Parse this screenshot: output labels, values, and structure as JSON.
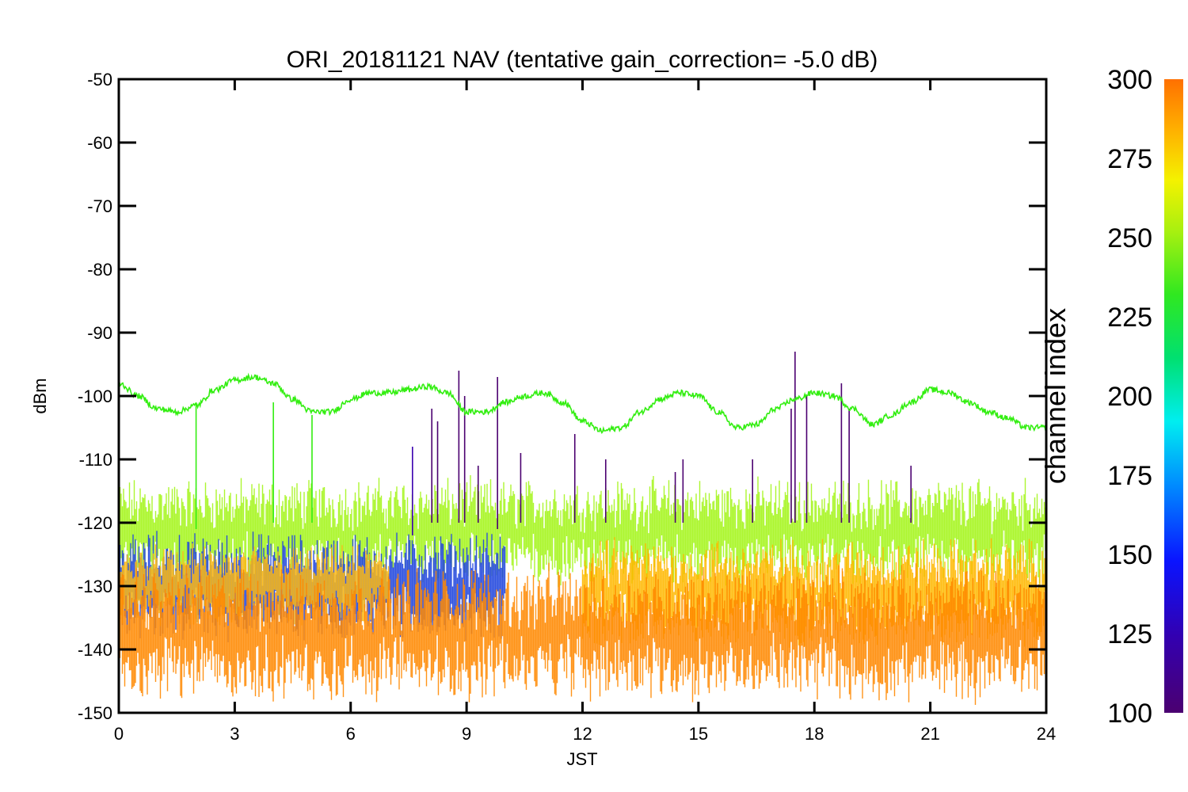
{
  "chart_data": {
    "type": "line",
    "title": "ORI_20181121 NAV (tentative gain_correction= -5.0 dB)",
    "xlabel": "JST",
    "ylabel": "dBm",
    "xlim": [
      0,
      24
    ],
    "ylim": [
      -150,
      -50
    ],
    "xticks": [
      "0",
      "3",
      "6",
      "9",
      "12",
      "15",
      "18",
      "21",
      "24"
    ],
    "yticks": [
      "-50",
      "-60",
      "-70",
      "-80",
      "-90",
      "-100",
      "-110",
      "-120",
      "-130",
      "-140",
      "-150"
    ],
    "grid": false,
    "colorbar": {
      "label": "channel index",
      "range": [
        100,
        300
      ],
      "ticks": [
        "300",
        "275",
        "250",
        "225",
        "200",
        "175",
        "150",
        "125",
        "100"
      ]
    },
    "series": [
      {
        "channel": 245,
        "color": "#33ee11",
        "x": [
          0,
          0.5,
          1,
          1.5,
          2,
          2.5,
          3,
          3.5,
          4,
          4.5,
          5,
          5.5,
          6,
          6.5,
          7,
          7.5,
          8,
          8.5,
          9,
          9.5,
          10,
          10.5,
          11,
          11.5,
          12,
          12.5,
          13,
          13.5,
          14,
          14.5,
          15,
          15.5,
          16,
          16.5,
          17,
          17.5,
          18,
          18.5,
          19,
          19.5,
          20,
          20.5,
          21,
          21.5,
          22,
          22.5,
          23,
          23.5,
          24
        ],
        "values": [
          -98,
          -100,
          -102,
          -102.5,
          -101.5,
          -99,
          -97.5,
          -97,
          -98,
          -100.5,
          -102.5,
          -102.5,
          -100.5,
          -99.5,
          -99.5,
          -99,
          -98.5,
          -99.5,
          -102.5,
          -102.5,
          -101,
          -100,
          -99.5,
          -101,
          -104,
          -105.5,
          -105,
          -102.5,
          -100.5,
          -99.5,
          -100,
          -102.5,
          -105,
          -104.5,
          -102,
          -100.5,
          -99.5,
          -100,
          -102,
          -104.5,
          -103,
          -101,
          -99,
          -99.5,
          -101,
          -102.5,
          -103.5,
          -105,
          -105
        ]
      }
    ],
    "bands": [
      {
        "label_channel": 240,
        "color": "#a4f51b",
        "center": -121.5,
        "spread": 4
      },
      {
        "label_channel": 160,
        "color": "#1f45dd",
        "center": -130,
        "spread": 4,
        "x_range": [
          0,
          10
        ]
      },
      {
        "label_channel": 275,
        "color": "#fbb812",
        "center": -130,
        "spread": 3,
        "x_range": [
          0,
          7
        ]
      },
      {
        "label_channel": 280,
        "color": "#ffb800",
        "center": -131,
        "spread": 4,
        "x_range": [
          12,
          24
        ]
      },
      {
        "label_channel": 290,
        "color": "#ff8800",
        "center": -137.5,
        "spread": 5
      }
    ],
    "spikes": [
      {
        "x": 2.0,
        "top": -101,
        "bottom": -121,
        "channel": 245
      },
      {
        "x": 4.0,
        "top": -101,
        "bottom": -120,
        "channel": 245
      },
      {
        "x": 5.0,
        "top": -103,
        "bottom": -120,
        "channel": 245
      },
      {
        "x": 7.6,
        "top": -108,
        "bottom": -122,
        "channel": 140
      },
      {
        "x": 8.1,
        "top": -102,
        "bottom": -120,
        "channel": 110
      },
      {
        "x": 8.25,
        "top": -104,
        "bottom": -120,
        "channel": 110
      },
      {
        "x": 8.8,
        "top": -96,
        "bottom": -120,
        "channel": 110
      },
      {
        "x": 8.95,
        "top": -100,
        "bottom": -120,
        "channel": 110
      },
      {
        "x": 9.3,
        "top": -111,
        "bottom": -120,
        "channel": 110
      },
      {
        "x": 9.8,
        "top": -97,
        "bottom": -121,
        "channel": 110
      },
      {
        "x": 10.4,
        "top": -109,
        "bottom": -120,
        "channel": 110
      },
      {
        "x": 11.8,
        "top": -106,
        "bottom": -120,
        "channel": 110
      },
      {
        "x": 12.6,
        "top": -110,
        "bottom": -120,
        "channel": 110
      },
      {
        "x": 14.4,
        "top": -112,
        "bottom": -120,
        "channel": 110
      },
      {
        "x": 14.6,
        "top": -110,
        "bottom": -120,
        "channel": 110
      },
      {
        "x": 16.4,
        "top": -110,
        "bottom": -120,
        "channel": 110
      },
      {
        "x": 17.5,
        "top": -93,
        "bottom": -120,
        "channel": 110
      },
      {
        "x": 17.4,
        "top": -102,
        "bottom": -120,
        "channel": 110
      },
      {
        "x": 17.8,
        "top": -100,
        "bottom": -120,
        "channel": 110
      },
      {
        "x": 18.7,
        "top": -98,
        "bottom": -120,
        "channel": 110
      },
      {
        "x": 18.9,
        "top": -102,
        "bottom": -120,
        "channel": 110
      },
      {
        "x": 20.5,
        "top": -111,
        "bottom": -120,
        "channel": 110
      }
    ]
  }
}
